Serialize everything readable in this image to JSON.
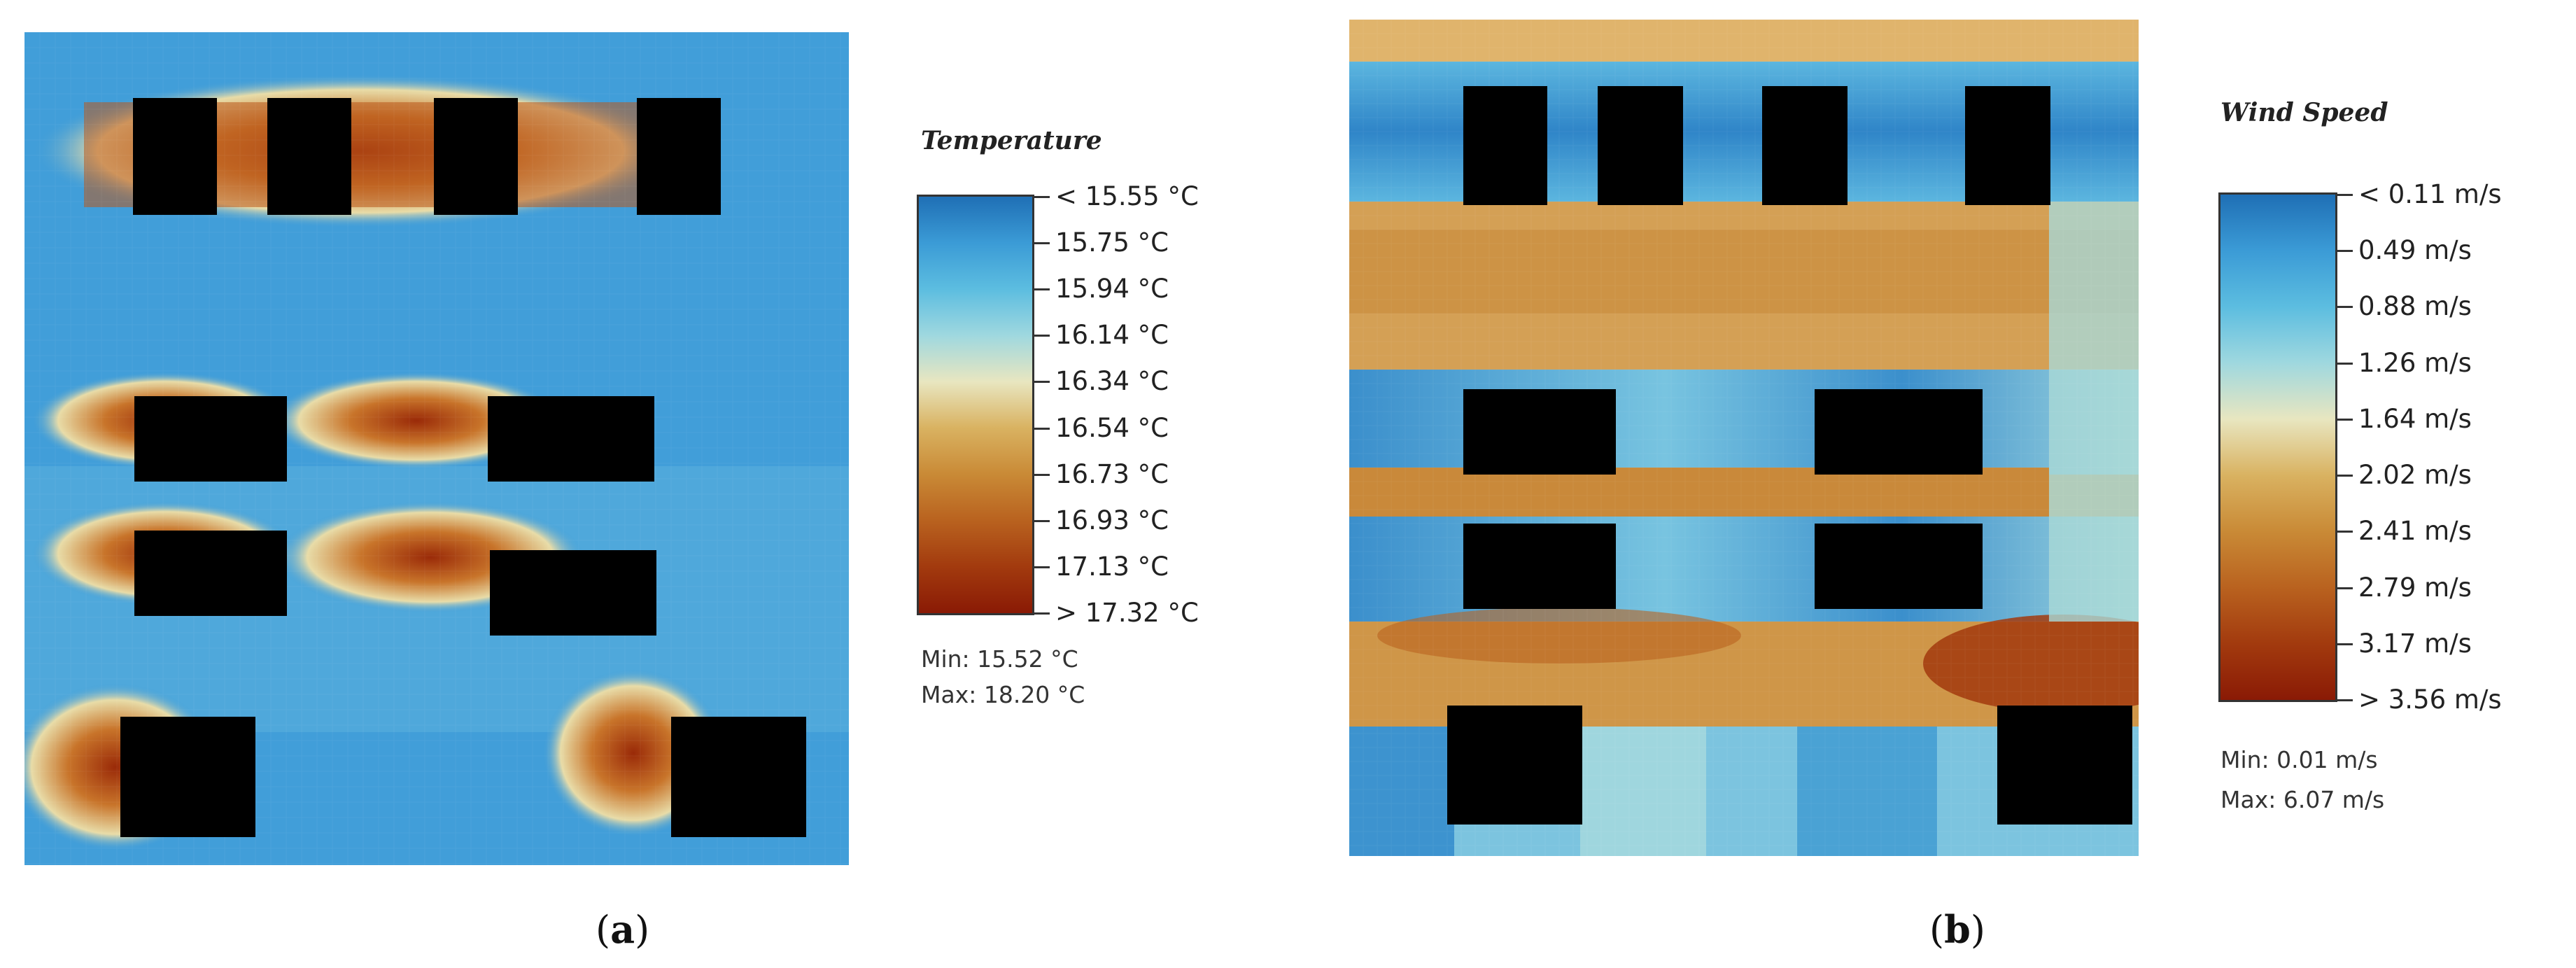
{
  "panels": [
    {
      "caption": {
        "open": "(",
        "letter": "a",
        "close": ")"
      },
      "legend": {
        "title": "Temperature",
        "labels": [
          "< 15.55 °C",
          "15.75 °C",
          "15.94 °C",
          "16.14 °C",
          "16.34 °C",
          "16.54 °C",
          "16.73 °C",
          "16.93 °C",
          "17.13 °C",
          "> 17.32 °C"
        ],
        "min_text": "Min: 15.52 °C",
        "max_text": "Max: 18.20 °C",
        "colors": [
          "#1f6fb5",
          "#3b9bd6",
          "#5cbde0",
          "#9fd8df",
          "#e8e6c0",
          "#d9b261",
          "#c98a36",
          "#b9621f",
          "#a23a0e",
          "#8a1a05"
        ]
      },
      "colors": {
        "background": "#3c9ad8",
        "building": "#000000"
      }
    },
    {
      "caption": {
        "open": "(",
        "letter": "b",
        "close": ")"
      },
      "legend": {
        "title": "Wind Speed",
        "labels": [
          "< 0.11 m/s",
          "0.49 m/s",
          "0.88 m/s",
          "1.26 m/s",
          "1.64 m/s",
          "2.02 m/s",
          "2.41 m/s",
          "2.79 m/s",
          "3.17 m/s",
          "> 3.56 m/s"
        ],
        "min_text": "Min: 0.01 m/s",
        "max_text": "Max: 6.07 m/s",
        "colors": [
          "#1f6fb5",
          "#3b9bd6",
          "#5cbde0",
          "#9fd8df",
          "#e8e6c0",
          "#d9b261",
          "#c98a36",
          "#b9621f",
          "#a23a0e",
          "#8a1a05"
        ]
      },
      "colors": {
        "background": "#d09a4e",
        "building": "#000000"
      }
    }
  ],
  "chart_data": [
    {
      "type": "heatmap",
      "title": "Temperature",
      "unit": "°C",
      "scale_labels": [
        15.55,
        15.75,
        15.94,
        16.14,
        16.34,
        16.54,
        16.73,
        16.93,
        17.13,
        17.32
      ],
      "min": 15.52,
      "max": 18.2
    },
    {
      "type": "heatmap",
      "title": "Wind Speed",
      "unit": "m/s",
      "scale_labels": [
        0.11,
        0.49,
        0.88,
        1.26,
        1.64,
        2.02,
        2.41,
        2.79,
        3.17,
        3.56
      ],
      "min": 0.01,
      "max": 6.07
    }
  ]
}
